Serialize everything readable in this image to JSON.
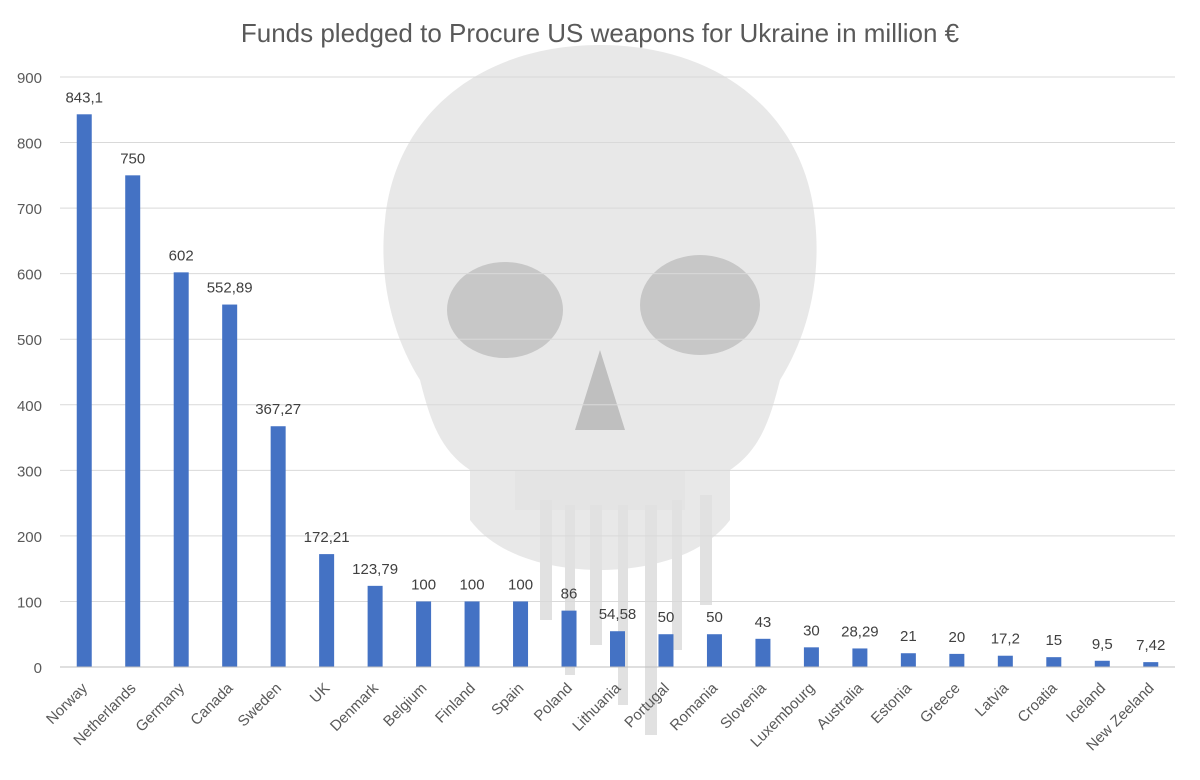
{
  "chart_data": {
    "type": "bar",
    "title": "Funds pledged to Procure US weapons for Ukraine in million €",
    "categories": [
      "Norway",
      "Netherlands",
      "Germany",
      "Canada",
      "Sweden",
      "UK",
      "Denmark",
      "Belgium",
      "Finland",
      "Spain",
      "Poland",
      "Lithuania",
      "Portugal",
      "Romania",
      "Slovenia",
      "Luxembourg",
      "Australia",
      "Estonia",
      "Greece",
      "Latvia",
      "Croatia",
      "Iceland",
      "New Zeeland"
    ],
    "values": [
      843.1,
      750,
      602,
      552.89,
      367.27,
      172.21,
      123.79,
      100,
      100,
      100,
      86,
      54.58,
      50,
      50,
      43,
      30,
      28.29,
      21,
      20,
      17.2,
      15,
      9.5,
      7.42
    ],
    "data_labels": [
      "843,1",
      "750",
      "602",
      "552,89",
      "367,27",
      "172,21",
      "123,79",
      "100",
      "100",
      "100",
      "86",
      "54,58",
      "50",
      "50",
      "43",
      "30",
      "28,29",
      "21",
      "20",
      "17,2",
      "15",
      "9,5",
      "7,42"
    ],
    "y_ticks": [
      "0",
      "100",
      "200",
      "300",
      "400",
      "500",
      "600",
      "700",
      "800",
      "900"
    ],
    "ylim": [
      0,
      900
    ],
    "xlabel": "",
    "ylabel": "",
    "grid": true,
    "legend": "none",
    "bar_color": "#4472c4",
    "grid_color": "#d9d9d9",
    "watermark": "skull-illustration"
  }
}
